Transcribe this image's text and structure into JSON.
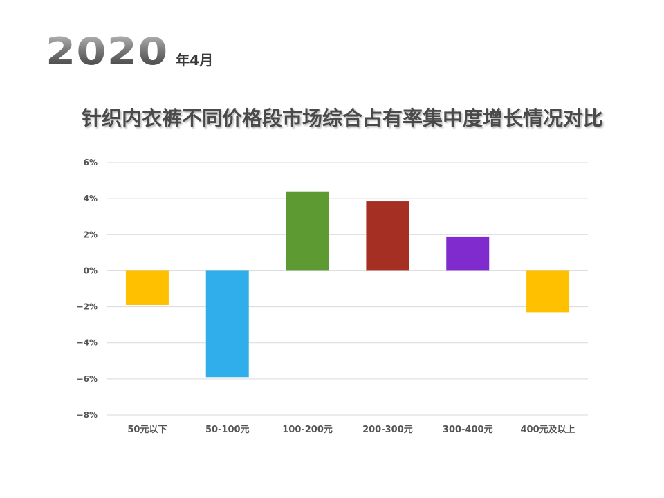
{
  "header": {
    "year": "2020",
    "month": "年4月"
  },
  "chart_data": {
    "type": "bar",
    "title": "针织内衣裤不同价格段市场综合占有率集中度增长情况对比",
    "categories": [
      "50元以下",
      "50-100元",
      "100-200元",
      "200-300元",
      "300-400元",
      "400元及以上"
    ],
    "values": [
      -1.9,
      -5.9,
      4.4,
      3.85,
      1.9,
      -2.3
    ],
    "colors": [
      "#FFC000",
      "#2FAEEB",
      "#5E9A32",
      "#A52F23",
      "#7F2BCE",
      "#FFC000"
    ],
    "yticks": [
      "6%",
      "4%",
      "2%",
      "0%",
      "−2%",
      "−4%",
      "−6%",
      "−8%"
    ],
    "ylim": [
      -8,
      6
    ],
    "grid": true,
    "unit": "%"
  }
}
